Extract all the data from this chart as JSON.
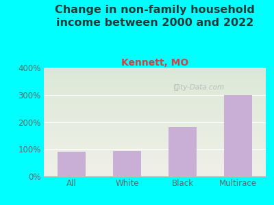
{
  "title": "Change in non-family household\nincome between 2000 and 2022",
  "subtitle": "Kennett, MO",
  "categories": [
    "All",
    "White",
    "Black",
    "Multirace"
  ],
  "values": [
    90,
    92,
    182,
    300
  ],
  "bar_color": "#c9aed6",
  "title_fontsize": 11.5,
  "subtitle_fontsize": 10,
  "ylim": [
    0,
    400
  ],
  "yticks": [
    0,
    100,
    200,
    300,
    400
  ],
  "ytick_labels": [
    "0%",
    "100%",
    "200%",
    "300%",
    "400%"
  ],
  "background_outer": "#00ffff",
  "background_inner_top": "#dce8d5",
  "background_inner_bottom": "#f0f0e8",
  "watermark": "City-Data.com",
  "title_color": "#1a3a3a",
  "subtitle_color": "#cc4444",
  "tick_label_color": "#666666",
  "grid_color": "#ffffff",
  "spine_bottom_color": "#bbbbbb"
}
